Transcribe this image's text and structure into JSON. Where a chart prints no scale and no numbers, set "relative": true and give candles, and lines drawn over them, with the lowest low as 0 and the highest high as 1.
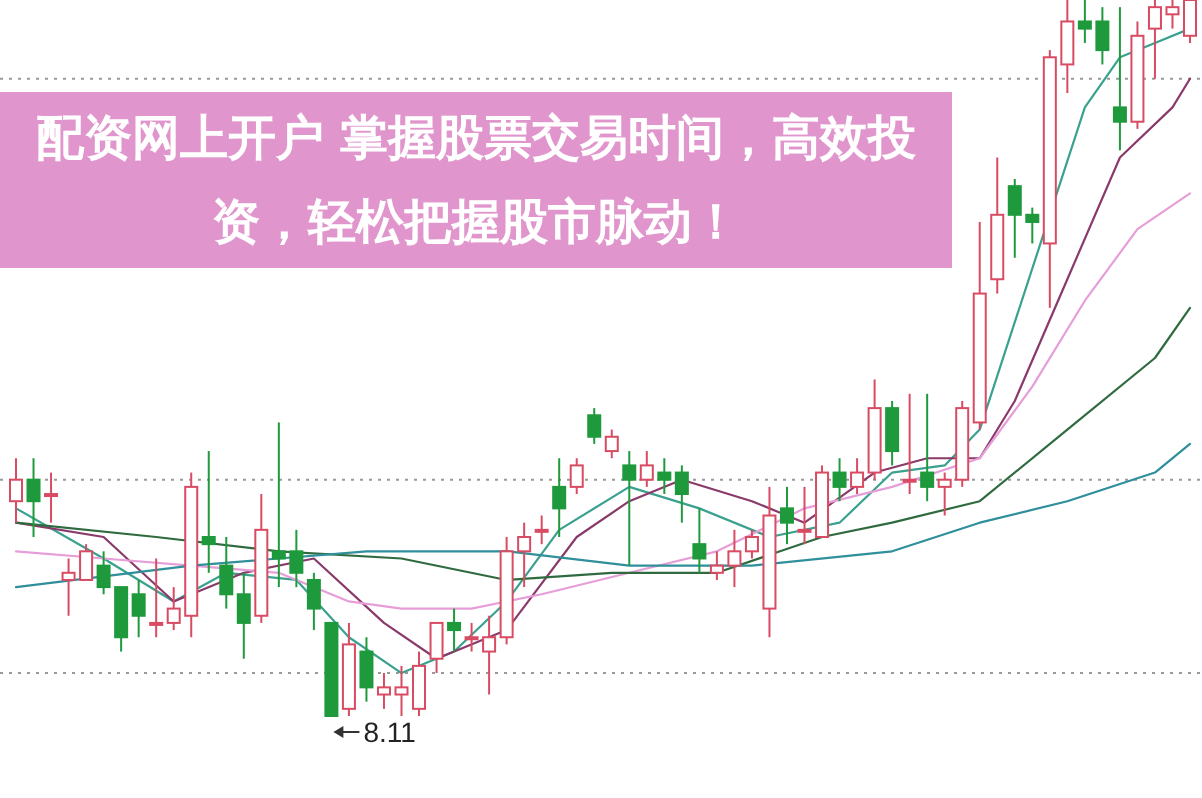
{
  "chart_data": {
    "type": "candlestick",
    "title": "配资网上开户 掌握股票交易时间，高效投资，轻松把握股市脉动！",
    "relative": true,
    "categories": [
      null,
      null,
      null,
      null,
      null,
      null,
      null,
      null,
      null,
      null,
      null,
      null,
      null,
      null,
      null,
      null,
      null,
      null,
      null,
      null,
      null,
      null,
      null,
      null,
      null,
      null,
      null,
      null,
      null,
      null,
      null,
      null,
      null,
      null,
      null,
      null,
      null,
      null,
      null,
      null,
      null,
      null,
      null,
      null,
      null,
      null,
      null,
      null,
      null,
      null,
      null,
      null,
      null,
      null,
      null,
      null,
      null,
      null,
      null,
      null,
      null,
      null,
      null,
      null,
      null,
      null,
      null,
      null
    ],
    "ohlc": [
      [
        0.3,
        0.36,
        0.27,
        0.33
      ],
      [
        0.33,
        0.36,
        0.25,
        0.3
      ],
      [
        0.31,
        0.34,
        0.27,
        0.31
      ],
      [
        0.19,
        0.22,
        0.14,
        0.2
      ],
      [
        0.19,
        0.24,
        0.19,
        0.23
      ],
      [
        0.21,
        0.23,
        0.17,
        0.18
      ],
      [
        0.18,
        0.18,
        0.09,
        0.11
      ],
      [
        0.17,
        0.19,
        0.11,
        0.14
      ],
      [
        0.13,
        0.22,
        0.11,
        0.13
      ],
      [
        0.13,
        0.18,
        0.12,
        0.15
      ],
      [
        0.14,
        0.34,
        0.11,
        0.32
      ],
      [
        0.25,
        0.37,
        0.2,
        0.24
      ],
      [
        0.21,
        0.25,
        0.15,
        0.17
      ],
      [
        0.17,
        0.2,
        0.08,
        0.13
      ],
      [
        0.14,
        0.31,
        0.13,
        0.26
      ],
      [
        0.23,
        0.41,
        0.18,
        0.22
      ],
      [
        0.23,
        0.26,
        0.18,
        0.2
      ],
      [
        0.19,
        0.2,
        0.12,
        0.15
      ],
      [
        0.13,
        0.13,
        0,
        0.0
      ],
      [
        0.01,
        0.13,
        0.0,
        0.1
      ],
      [
        0.09,
        0.11,
        0.02,
        0.04
      ],
      [
        0.03,
        0.06,
        0.01,
        0.04
      ],
      [
        0.03,
        0.07,
        0.0,
        0.04
      ],
      [
        0.01,
        0.09,
        0.0,
        0.07
      ],
      [
        0.08,
        0.13,
        0.06,
        0.13
      ],
      [
        0.13,
        0.15,
        0.09,
        0.12
      ],
      [
        0.11,
        0.13,
        0.09,
        0.11
      ],
      [
        0.09,
        0.14,
        0.03,
        0.11
      ],
      [
        0.11,
        0.25,
        0.1,
        0.23
      ],
      [
        0.23,
        0.27,
        0.18,
        0.25
      ],
      [
        0.26,
        0.28,
        0.24,
        0.26
      ],
      [
        0.32,
        0.36,
        0.25,
        0.29
      ],
      [
        0.32,
        0.36,
        0.31,
        0.35
      ],
      [
        0.42,
        0.43,
        0.38,
        0.39
      ],
      [
        0.37,
        0.4,
        0.36,
        0.39
      ],
      [
        0.35,
        0.37,
        0.21,
        0.33
      ],
      [
        0.33,
        0.37,
        0.32,
        0.35
      ],
      [
        0.34,
        0.36,
        0.31,
        0.33
      ],
      [
        0.34,
        0.35,
        0.27,
        0.31
      ],
      [
        0.24,
        0.29,
        0.2,
        0.22
      ],
      [
        0.2,
        0.23,
        0.19,
        0.21
      ],
      [
        0.21,
        0.26,
        0.18,
        0.23
      ],
      [
        0.23,
        0.26,
        0.22,
        0.25
      ],
      [
        0.15,
        0.32,
        0.11,
        0.28
      ],
      [
        0.29,
        0.32,
        0.24,
        0.27
      ],
      [
        0.26,
        0.32,
        0.24,
        0.26
      ],
      [
        0.25,
        0.35,
        0.25,
        0.34
      ],
      [
        0.34,
        0.36,
        0.3,
        0.32
      ],
      [
        0.32,
        0.36,
        0.31,
        0.34
      ],
      [
        0.34,
        0.47,
        0.33,
        0.43
      ],
      [
        0.43,
        0.44,
        0.35,
        0.37
      ],
      [
        0.33,
        0.45,
        0.31,
        0.33
      ],
      [
        0.34,
        0.45,
        0.3,
        0.32
      ],
      [
        0.32,
        0.34,
        0.28,
        0.33
      ],
      [
        0.33,
        0.44,
        0.32,
        0.43
      ],
      [
        0.41,
        0.69,
        0.4,
        0.59
      ],
      [
        0.61,
        0.78,
        0.59,
        0.7
      ],
      [
        0.74,
        0.75,
        0.64,
        0.7
      ],
      [
        0.7,
        0.71,
        0.66,
        0.69
      ],
      [
        0.66,
        0.93,
        0.57,
        0.92
      ],
      [
        0.91,
        1,
        0.87,
        0.97
      ],
      [
        0.97,
        1,
        0.94,
        0.96
      ],
      [
        0.97,
        0.99,
        0.91,
        0.93
      ],
      [
        0.85,
        0.99,
        0.79,
        0.83
      ],
      [
        0.83,
        0.97,
        0.82,
        0.95
      ],
      [
        0.96,
        1,
        0.89,
        0.99
      ],
      [
        0.98,
        1,
        0.96,
        0.99
      ],
      [
        0.95,
        1,
        0.94,
        1
      ]
    ],
    "series": [
      {
        "type": "line",
        "color": "#3aa18f",
        "values": [
          0.29,
          null,
          null,
          null,
          null,
          0.22,
          null,
          null,
          null,
          0.16,
          null,
          null,
          0.2,
          null,
          null,
          null,
          0.19,
          null,
          null,
          0.11,
          null,
          null,
          0.06,
          null,
          null,
          0.09,
          null,
          null,
          0.16,
          null,
          null,
          0.26,
          null,
          null,
          null,
          0.32,
          null,
          null,
          null,
          0.29,
          null,
          null,
          null,
          0.25,
          null,
          null,
          null,
          0.27,
          null,
          null,
          0.34,
          null,
          null,
          0.35,
          null,
          0.4,
          null,
          0.55,
          null,
          null,
          null,
          0.85,
          null,
          0.92,
          null,
          0.94,
          null,
          0.96
        ]
      },
      {
        "type": "line",
        "color": "#8a3a6a",
        "values": [
          0.27,
          null,
          null,
          null,
          null,
          0.25,
          null,
          null,
          null,
          0.16,
          null,
          null,
          null,
          0.2,
          null,
          null,
          null,
          0.22,
          null,
          null,
          null,
          0.13,
          null,
          null,
          0.08,
          null,
          null,
          null,
          0.12,
          null,
          null,
          null,
          0.25,
          null,
          null,
          0.3,
          null,
          null,
          0.33,
          null,
          null,
          null,
          0.3,
          null,
          null,
          0.27,
          null,
          null,
          null,
          0.34,
          null,
          null,
          0.36,
          null,
          null,
          0.36,
          null,
          0.44,
          null,
          null,
          0.61,
          null,
          null,
          0.78,
          null,
          null,
          0.85,
          0.89
        ]
      },
      {
        "type": "line",
        "color": "#e79ed8",
        "values": [
          0.23,
          null,
          null,
          null,
          null,
          0.22,
          null,
          null,
          null,
          null,
          0.21,
          null,
          null,
          null,
          null,
          0.2,
          null,
          null,
          null,
          0.16,
          null,
          null,
          0.15,
          null,
          null,
          null,
          0.15,
          null,
          null,
          null,
          0.17,
          null,
          null,
          null,
          null,
          0.2,
          null,
          null,
          null,
          null,
          0.23,
          null,
          null,
          null,
          null,
          0.29,
          null,
          null,
          null,
          null,
          0.32,
          null,
          null,
          null,
          null,
          0.36,
          null,
          null,
          0.46,
          null,
          null,
          0.58,
          null,
          null,
          0.68,
          null,
          null,
          0.73
        ]
      },
      {
        "type": "line",
        "color": "#2f6b3f",
        "values": [
          0.27,
          null,
          null,
          null,
          null,
          null,
          null,
          null,
          0.25,
          null,
          null,
          null,
          null,
          null,
          null,
          0.23,
          null,
          null,
          null,
          null,
          null,
          null,
          0.22,
          null,
          null,
          null,
          null,
          null,
          0.19,
          null,
          null,
          null,
          null,
          null,
          0.2,
          null,
          null,
          null,
          null,
          null,
          0.2,
          null,
          null,
          null,
          null,
          null,
          0.25,
          null,
          null,
          null,
          0.27,
          null,
          null,
          null,
          null,
          0.3,
          null,
          null,
          null,
          null,
          0.4,
          null,
          null,
          null,
          null,
          0.5,
          null,
          0.57
        ]
      },
      {
        "type": "line",
        "color": "#2f8f9a",
        "values": [
          0.18,
          null,
          null,
          null,
          null,
          null,
          null,
          null,
          null,
          null,
          0.21,
          null,
          null,
          null,
          null,
          null,
          null,
          null,
          null,
          null,
          0.23,
          null,
          null,
          null,
          null,
          null,
          null,
          null,
          0.23,
          null,
          null,
          null,
          null,
          null,
          null,
          0.21,
          null,
          null,
          null,
          null,
          null,
          null,
          0.21,
          null,
          null,
          null,
          null,
          null,
          null,
          null,
          0.23,
          null,
          null,
          null,
          null,
          0.27,
          null,
          null,
          null,
          null,
          0.3,
          null,
          null,
          null,
          null,
          0.34,
          null,
          0.38
        ]
      }
    ],
    "ref_lines": [
      {
        "axis": "y",
        "value": 0.89,
        "color": "#999999",
        "line_style": "dotted"
      },
      {
        "axis": "y",
        "value": 0.33,
        "color": "#999999",
        "line_style": "dotted"
      },
      {
        "axis": "y",
        "value": 0.06,
        "color": "#999999",
        "line_style": "dotted"
      }
    ],
    "annotations": [
      {
        "text": "8.11",
        "y": 0
      }
    ]
  }
}
